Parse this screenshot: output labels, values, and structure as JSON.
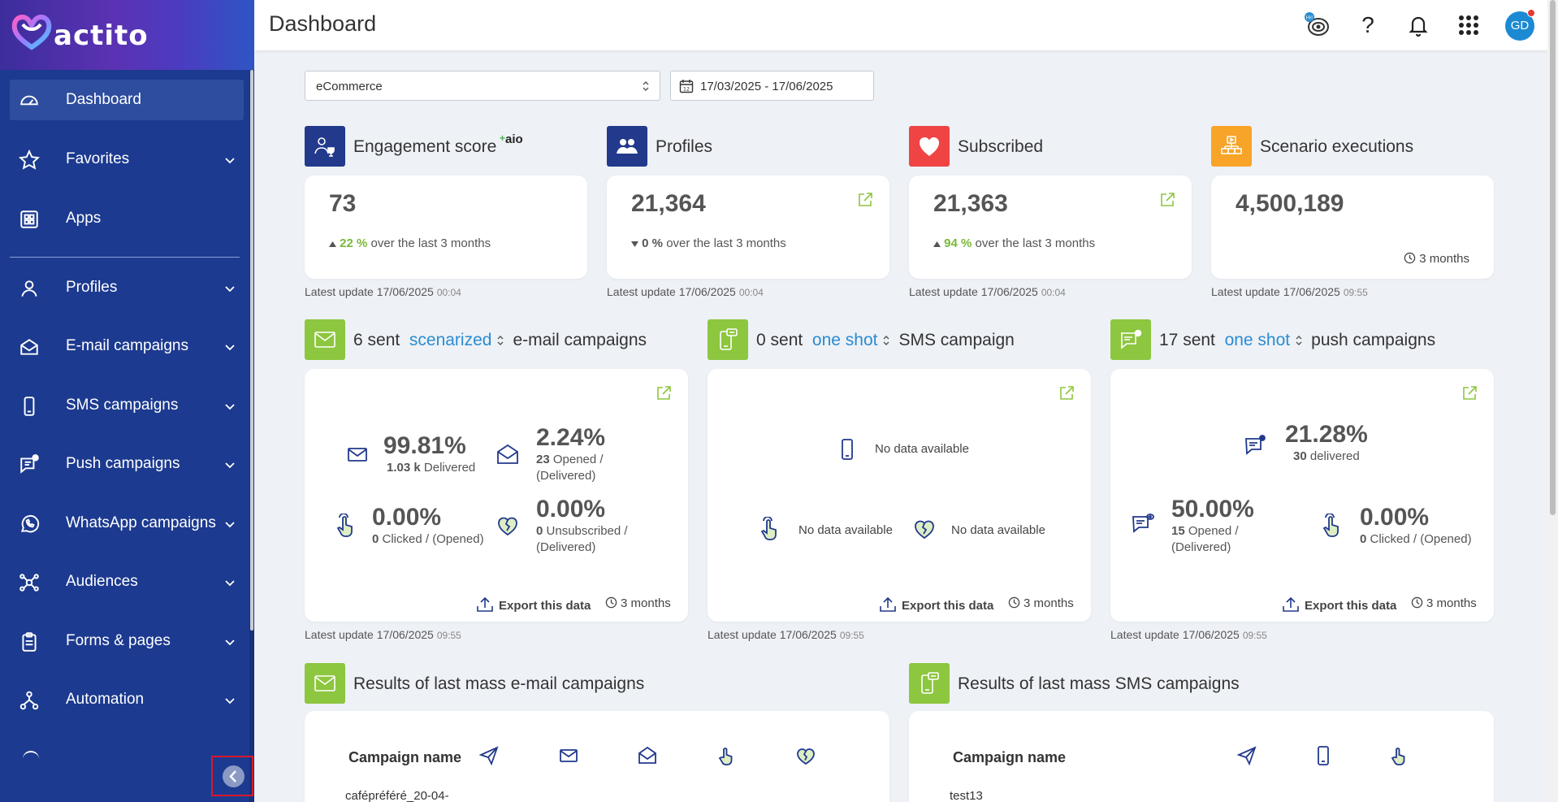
{
  "app": {
    "logo_text": "actito",
    "page_title": "Dashboard"
  },
  "colors": {
    "sidebar": "#1c3a8f",
    "green": "#8dc63f",
    "navy": "#22398c",
    "red": "#ef4344",
    "orange": "#f7a428",
    "link": "#2a8cd2"
  },
  "sidebar": {
    "items": [
      {
        "label": "Dashboard",
        "icon": "gauge-icon",
        "active": true
      },
      {
        "label": "Favorites",
        "icon": "star-icon"
      },
      {
        "label": "Apps",
        "icon": "grid-icon"
      },
      {
        "label": "Profiles",
        "icon": "user-icon"
      },
      {
        "label": "E-mail campaigns",
        "icon": "envelope-open-icon"
      },
      {
        "label": "SMS campaigns",
        "icon": "mobile-icon"
      },
      {
        "label": "Push campaigns",
        "icon": "push-message-icon"
      },
      {
        "label": "WhatsApp campaigns",
        "icon": "whatsapp-icon"
      },
      {
        "label": "Audiences",
        "icon": "network-icon"
      },
      {
        "label": "Forms & pages",
        "icon": "clipboard-icon"
      },
      {
        "label": "Automation",
        "icon": "flow-icon"
      }
    ]
  },
  "topbar": {
    "avatar": "GD",
    "help": "?",
    "bubble": "Hi!"
  },
  "filters": {
    "category": "eCommerce",
    "date_range": "17/03/2025 - 17/06/2025"
  },
  "kpis": [
    {
      "title": "Engagement score",
      "badge": "aio",
      "value": "73",
      "change": "22 %",
      "change_text": "over the last 3 months",
      "updated": "Latest update 17/06/2025",
      "time": "00:04"
    },
    {
      "title": "Profiles",
      "value": "21,364",
      "change": "0 %",
      "change_text": "over the last 3 months",
      "updated": "Latest update 17/06/2025",
      "time": "00:04"
    },
    {
      "title": "Subscribed",
      "value": "21,363",
      "change": "94 %",
      "change_text": "over the last 3 months",
      "updated": "Latest update 17/06/2025",
      "time": "00:04"
    },
    {
      "title": "Scenario executions",
      "value": "4,500,189",
      "period": "3 months",
      "updated": "Latest update 17/06/2025",
      "time": "09:55"
    }
  ],
  "campaigns": {
    "email": {
      "sent": "6 sent",
      "type": "scenarized",
      "suffix": "e-mail campaigns",
      "delivered_pct": "99.81%",
      "delivered_count": "1.03 k",
      "delivered_label": "Delivered",
      "opened_pct": "2.24%",
      "opened_count": "23",
      "opened_label": "Opened /",
      "opened_label2": "(Delivered)",
      "clicked_pct": "0.00%",
      "clicked_count": "0",
      "clicked_label": "Clicked / (Opened)",
      "unsub_pct": "0.00%",
      "unsub_count": "0",
      "unsub_label": "Unsubscribed /",
      "unsub_label2": "(Delivered)",
      "export": "Export this data",
      "period": "3 months",
      "updated": "Latest update 17/06/2025",
      "time": "09:55"
    },
    "sms": {
      "sent": "0 sent",
      "type": "one shot",
      "suffix": "SMS campaign",
      "nodata_1": "No data available",
      "nodata_2": "No data available",
      "nodata_3": "No data available",
      "export": "Export this data",
      "period": "3 months",
      "updated": "Latest update 17/06/2025",
      "time": "09:55"
    },
    "push": {
      "sent": "17 sent",
      "type": "one shot",
      "suffix": "push campaigns",
      "delivered_pct": "21.28%",
      "delivered_count": "30",
      "delivered_label": "delivered",
      "opened_pct": "50.00%",
      "opened_count": "15",
      "opened_label": "Opened /",
      "opened_label2": "(Delivered)",
      "clicked_pct": "0.00%",
      "clicked_count": "0",
      "clicked_label": "Clicked / (Opened)",
      "export": "Export this data",
      "period": "3 months",
      "updated": "Latest update 17/06/2025",
      "time": "09:55"
    }
  },
  "results": {
    "email": {
      "title": "Results of last mass e-mail campaigns",
      "col_name": "Campaign name",
      "row_1": "cafépréféré_20-04-"
    },
    "sms": {
      "title": "Results of last mass SMS campaigns",
      "col_name": "Campaign name",
      "row_1": "test13"
    }
  }
}
